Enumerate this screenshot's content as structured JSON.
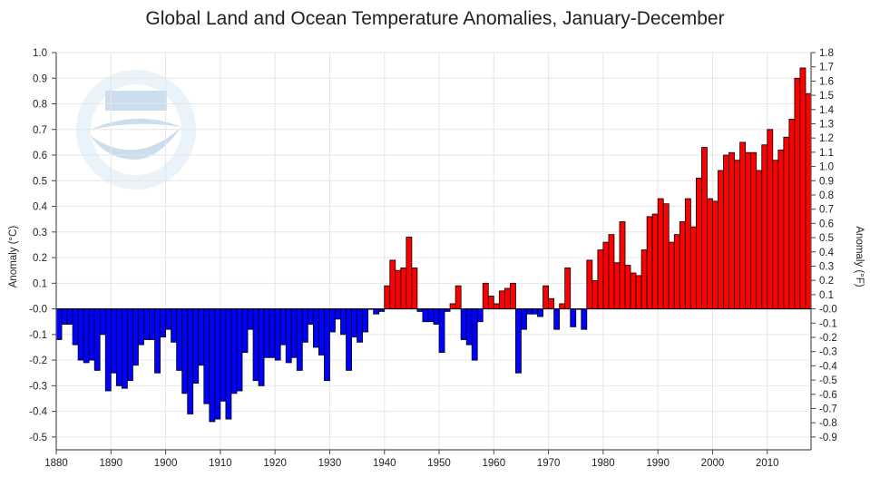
{
  "chart_data": {
    "type": "bar",
    "title": "Global Land and Ocean Temperature Anomalies, January-December",
    "ylabel": "Anomaly (°C)",
    "y2label": "Anomaly (°F)",
    "xlim": [
      1880,
      2017
    ],
    "ylim": [
      -0.55,
      1.0
    ],
    "y2lim": [
      -0.99,
      1.8
    ],
    "grid": true,
    "legend": "none",
    "x_ticks": [
      "1880",
      "1890",
      "1900",
      "1910",
      "1920",
      "1930",
      "1940",
      "1950",
      "1960",
      "1970",
      "1980",
      "1990",
      "2000",
      "2010"
    ],
    "y_ticks": [
      "1.0",
      "0.9",
      "0.8",
      "0.7",
      "0.6",
      "0.5",
      "0.4",
      "0.3",
      "0.2",
      "0.1",
      "-0.0",
      "-0.1",
      "-0.2",
      "-0.3",
      "-0.4",
      "-0.5"
    ],
    "y2_ticks": [
      "1.8",
      "1.7",
      "1.6",
      "1.5",
      "1.4",
      "1.3",
      "1.2",
      "1.1",
      "1.0",
      "0.9",
      "0.8",
      "0.7",
      "0.6",
      "0.5",
      "0.4",
      "0.3",
      "0.2",
      "0.1",
      "-0.0",
      "-0.1",
      "-0.2",
      "-0.3",
      "-0.4",
      "-0.5",
      "-0.6",
      "-0.7",
      "-0.8",
      "-0.9"
    ],
    "colors": {
      "positive": "#ff0000",
      "negative": "#0000ff",
      "outline": "#000000",
      "grid": "#e6e6e6"
    },
    "series": [
      {
        "x_start": 1880,
        "values": [
          -0.12,
          -0.06,
          -0.06,
          -0.14,
          -0.2,
          -0.21,
          -0.2,
          -0.24,
          -0.1,
          -0.32,
          -0.25,
          -0.3,
          -0.31,
          -0.28,
          -0.22,
          -0.14,
          -0.12,
          -0.12,
          -0.25,
          -0.11,
          -0.08,
          -0.13,
          -0.24,
          -0.33,
          -0.41,
          -0.29,
          -0.22,
          -0.37,
          -0.44,
          -0.43,
          -0.36,
          -0.43,
          -0.33,
          -0.32,
          -0.17,
          -0.08,
          -0.28,
          -0.3,
          -0.19,
          -0.19,
          -0.2,
          -0.14,
          -0.21,
          -0.19,
          -0.24,
          -0.13,
          -0.06,
          -0.15,
          -0.18,
          -0.28,
          -0.09,
          -0.04,
          -0.1,
          -0.24,
          -0.11,
          -0.13,
          -0.09,
          -0.0,
          -0.02,
          -0.01,
          0.09,
          0.19,
          0.15,
          0.16,
          0.28,
          0.16,
          -0.01,
          -0.05,
          -0.05,
          -0.06,
          -0.17,
          -0.01,
          0.02,
          0.09,
          -0.12,
          -0.14,
          -0.2,
          -0.05,
          0.1,
          0.05,
          0.02,
          0.07,
          0.08,
          0.1,
          -0.25,
          -0.08,
          -0.02,
          -0.02,
          -0.03,
          0.09,
          0.04,
          -0.08,
          0.02,
          0.16,
          -0.07,
          0.0,
          -0.08,
          0.19,
          0.11,
          0.23,
          0.26,
          0.29,
          0.18,
          0.34,
          0.17,
          0.14,
          0.13,
          0.23,
          0.36,
          0.37,
          0.43,
          0.41,
          0.26,
          0.29,
          0.34,
          0.43,
          0.32,
          0.51,
          0.63,
          0.43,
          0.42,
          0.54,
          0.6,
          0.61,
          0.58,
          0.65,
          0.61,
          0.61,
          0.54,
          0.64,
          0.7,
          0.58,
          0.62,
          0.67,
          0.74,
          0.9,
          0.94,
          0.84
        ]
      }
    ]
  }
}
